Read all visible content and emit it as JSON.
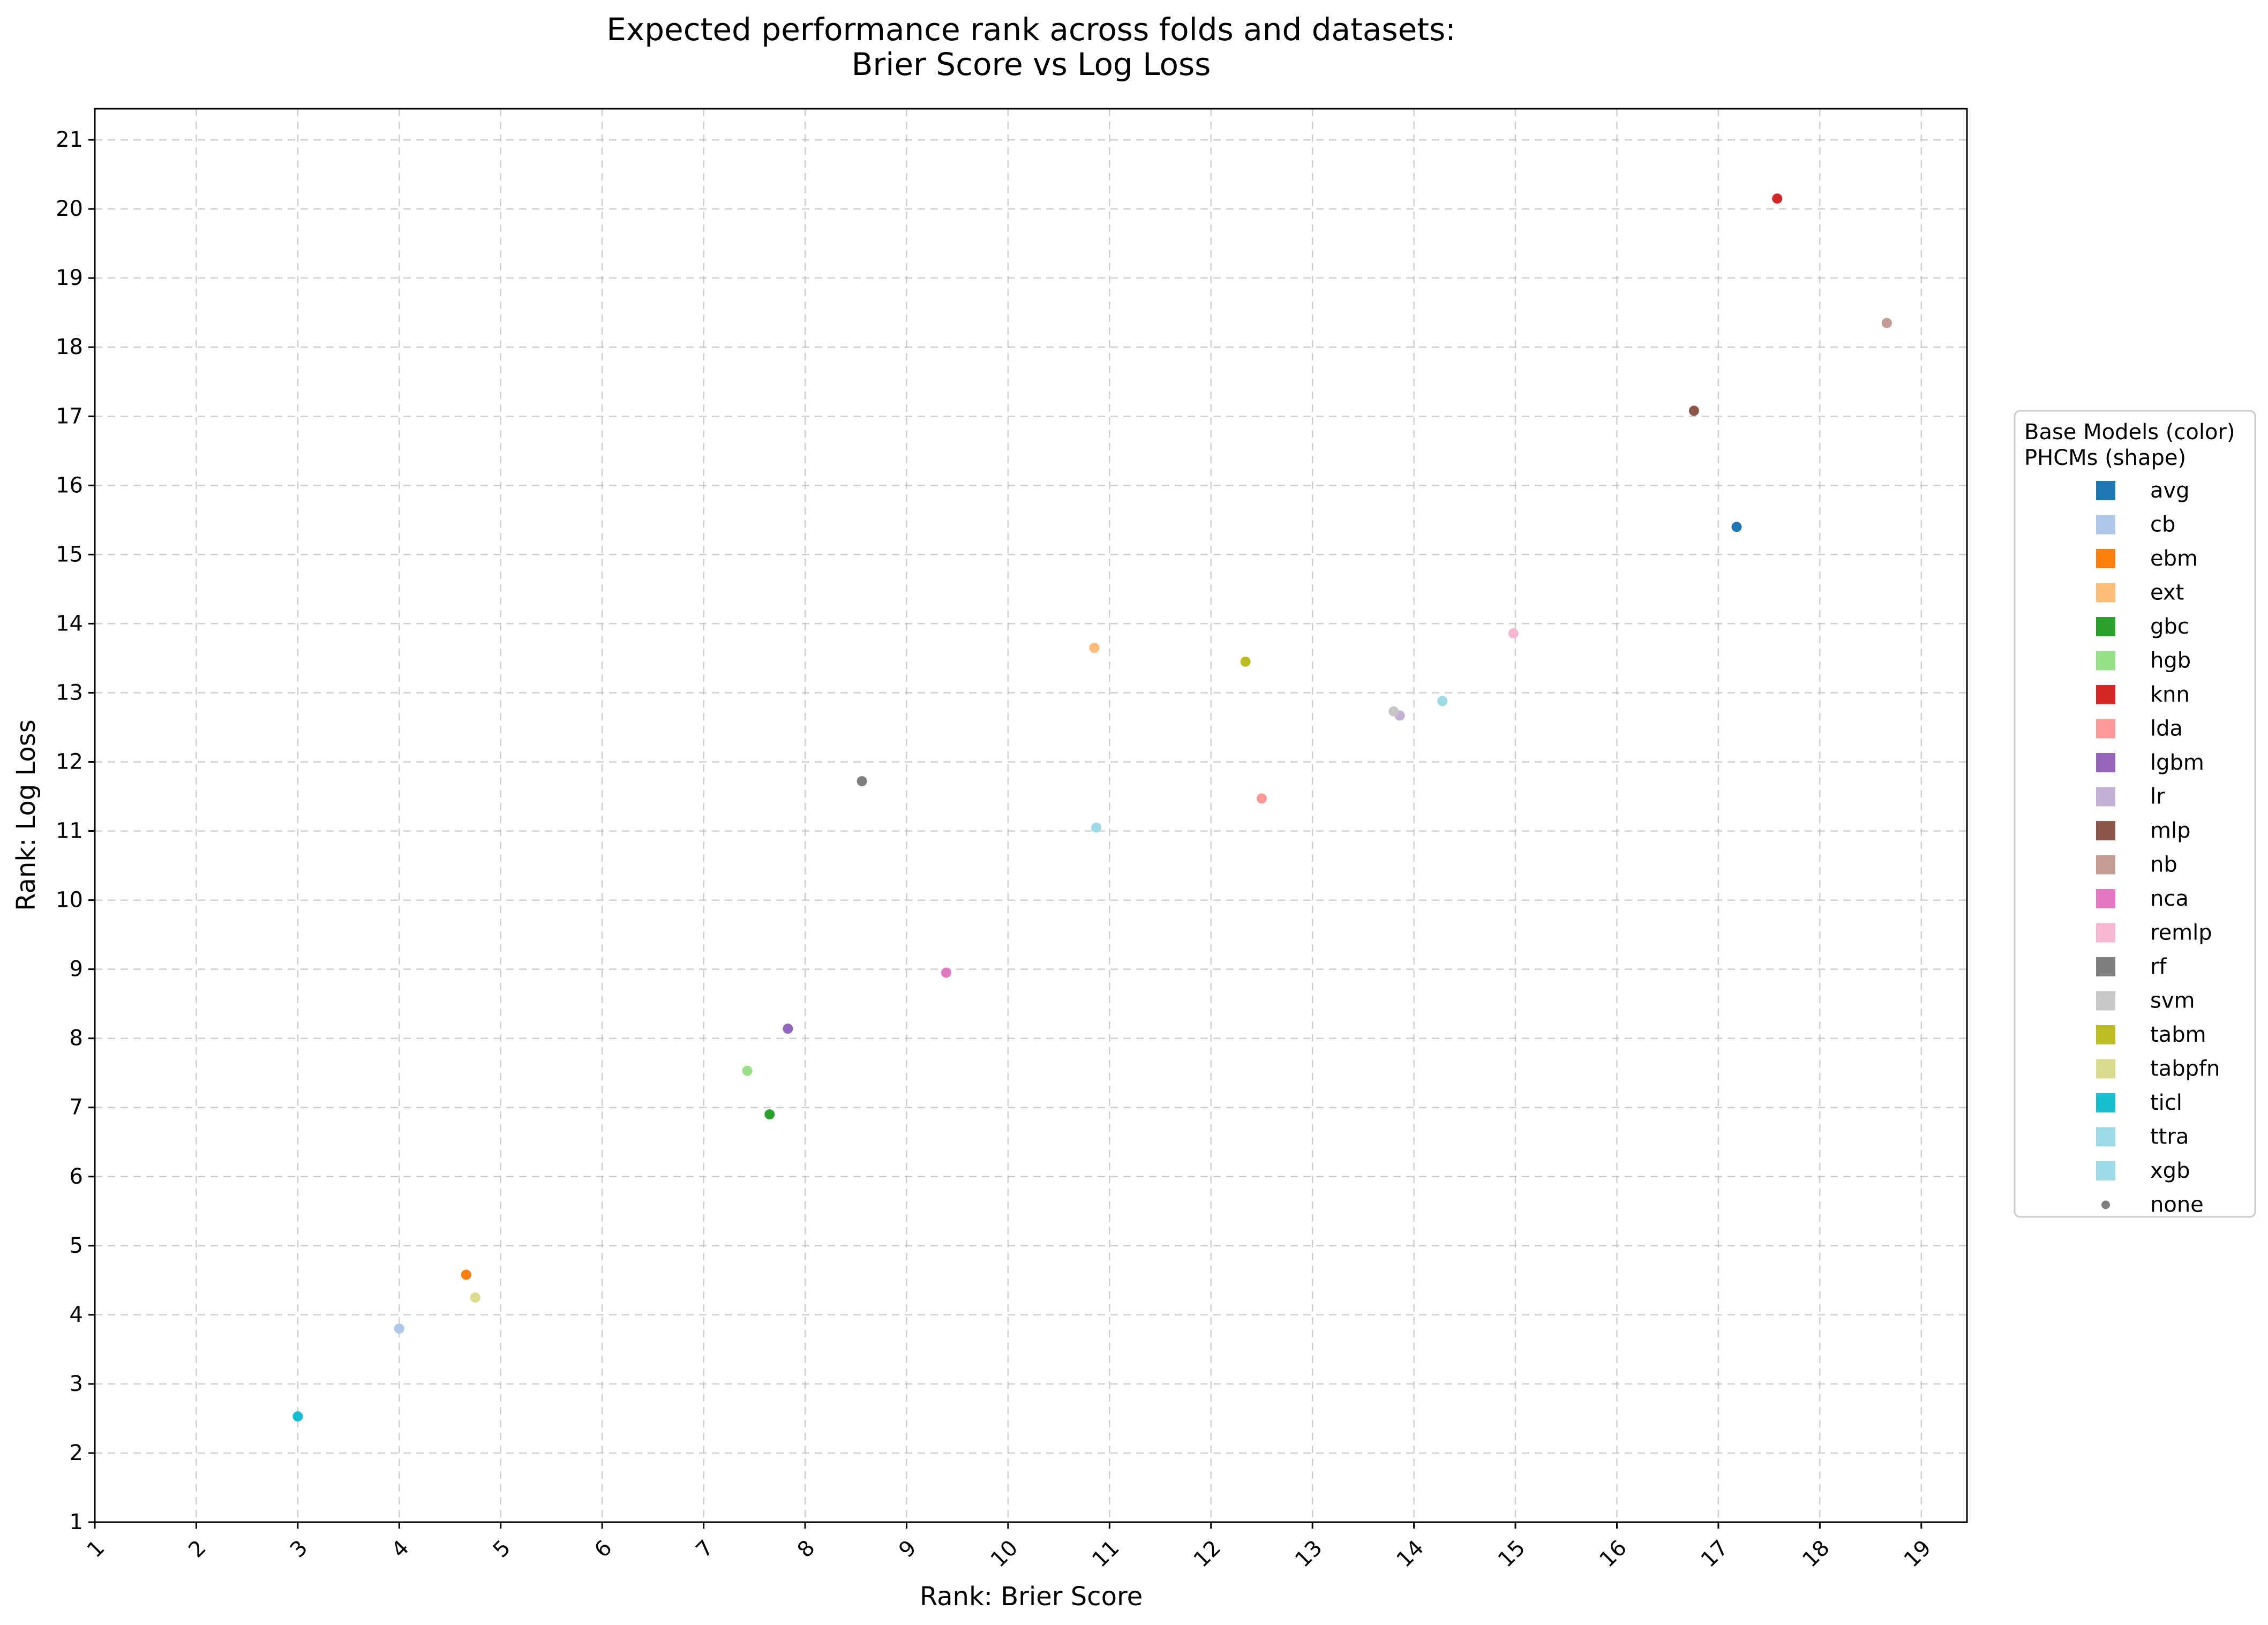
{
  "chart_data": {
    "type": "scatter",
    "title_lines": [
      "Expected performance rank across folds and datasets:",
      "Brier Score vs Log Loss"
    ],
    "xlabel": "Rank: Brier Score",
    "ylabel": "Rank: Log Loss",
    "xlim": [
      1,
      19.45
    ],
    "ylim": [
      1,
      21.45
    ],
    "xticks": [
      1,
      2,
      3,
      4,
      5,
      6,
      7,
      8,
      9,
      10,
      11,
      12,
      13,
      14,
      15,
      16,
      17,
      18,
      19
    ],
    "yticks": [
      1,
      2,
      3,
      4,
      5,
      6,
      7,
      8,
      9,
      10,
      11,
      12,
      13,
      14,
      15,
      16,
      17,
      18,
      19,
      20,
      21
    ],
    "grid": true,
    "legend": {
      "placement": "right-outside",
      "title_lines": [
        "Base Models (color)",
        "PHCMs (shape)"
      ],
      "entries": [
        {
          "label": "avg",
          "color": "#1f77b4",
          "marker": "square"
        },
        {
          "label": "cb",
          "color": "#aec7e8",
          "marker": "square"
        },
        {
          "label": "ebm",
          "color": "#ff7f0e",
          "marker": "square"
        },
        {
          "label": "ext",
          "color": "#ffbb78",
          "marker": "square"
        },
        {
          "label": "gbc",
          "color": "#2ca02c",
          "marker": "square"
        },
        {
          "label": "hgb",
          "color": "#98df8a",
          "marker": "square"
        },
        {
          "label": "knn",
          "color": "#d62728",
          "marker": "square"
        },
        {
          "label": "lda",
          "color": "#ff9896",
          "marker": "square"
        },
        {
          "label": "lgbm",
          "color": "#9467bd",
          "marker": "square"
        },
        {
          "label": "lr",
          "color": "#c5b0d5",
          "marker": "square"
        },
        {
          "label": "mlp",
          "color": "#8c564b",
          "marker": "square"
        },
        {
          "label": "nb",
          "color": "#c49c94",
          "marker": "square"
        },
        {
          "label": "nca",
          "color": "#e377c2",
          "marker": "square"
        },
        {
          "label": "remlp",
          "color": "#f7b6d2",
          "marker": "square"
        },
        {
          "label": "rf",
          "color": "#7f7f7f",
          "marker": "square"
        },
        {
          "label": "svm",
          "color": "#c7c7c7",
          "marker": "square"
        },
        {
          "label": "tabm",
          "color": "#bcbd22",
          "marker": "square"
        },
        {
          "label": "tabpfn",
          "color": "#dbdb8d",
          "marker": "square"
        },
        {
          "label": "ticl",
          "color": "#17becf",
          "marker": "square"
        },
        {
          "label": "ttra",
          "color": "#9edae5",
          "marker": "square"
        },
        {
          "label": "xgb",
          "color": "#9edae5",
          "marker": "square"
        },
        {
          "label": "none",
          "color": "#808080",
          "marker": "dot"
        }
      ]
    },
    "points": [
      {
        "model": "avg",
        "x": 17.18,
        "y": 15.4
      },
      {
        "model": "cb",
        "x": 4.0,
        "y": 3.8
      },
      {
        "model": "ebm",
        "x": 4.66,
        "y": 4.58
      },
      {
        "model": "ext",
        "x": 10.85,
        "y": 13.65
      },
      {
        "model": "gbc",
        "x": 7.65,
        "y": 6.9
      },
      {
        "model": "hgb",
        "x": 7.43,
        "y": 7.53
      },
      {
        "model": "knn",
        "x": 17.58,
        "y": 20.15
      },
      {
        "model": "lda",
        "x": 12.5,
        "y": 11.47
      },
      {
        "model": "lgbm",
        "x": 7.83,
        "y": 8.14
      },
      {
        "model": "lr",
        "x": 13.86,
        "y": 12.67
      },
      {
        "model": "mlp",
        "x": 16.76,
        "y": 17.08
      },
      {
        "model": "nb",
        "x": 18.66,
        "y": 18.35
      },
      {
        "model": "nca",
        "x": 9.39,
        "y": 8.95
      },
      {
        "model": "remlp",
        "x": 14.98,
        "y": 13.86
      },
      {
        "model": "rf",
        "x": 8.56,
        "y": 11.72
      },
      {
        "model": "svm",
        "x": 13.8,
        "y": 12.73
      },
      {
        "model": "tabm",
        "x": 12.34,
        "y": 13.45
      },
      {
        "model": "tabpfn",
        "x": 4.75,
        "y": 4.25
      },
      {
        "model": "ticl",
        "x": 3.0,
        "y": 2.53
      },
      {
        "model": "ttra",
        "x": 14.28,
        "y": 12.88
      },
      {
        "model": "xgb",
        "x": 10.87,
        "y": 11.05
      }
    ]
  }
}
